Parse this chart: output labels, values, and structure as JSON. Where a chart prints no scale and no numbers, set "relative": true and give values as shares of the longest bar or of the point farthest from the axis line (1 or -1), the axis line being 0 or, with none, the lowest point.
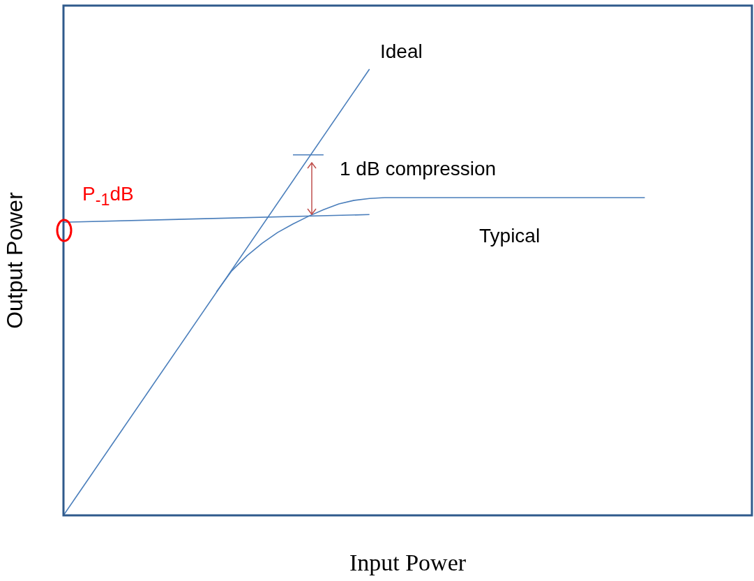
{
  "chart_data": {
    "type": "line",
    "relative": true,
    "xlabel": "Input Power",
    "ylabel": "Output Power",
    "categories": [
      null,
      null,
      null,
      null,
      null,
      null,
      null,
      null,
      null,
      null,
      null,
      null,
      null,
      null,
      null,
      null,
      null,
      null,
      null,
      null,
      null,
      null,
      null,
      null,
      null,
      null,
      null,
      null,
      null,
      null,
      null,
      null,
      null,
      null,
      null,
      null,
      null,
      null,
      null,
      null,
      null,
      null,
      null,
      null,
      null,
      null
    ],
    "series": [
      {
        "color": "#4a7ebb",
        "values": [
          0,
          null,
          null,
          null,
          null,
          null,
          null,
          null,
          null,
          null,
          null,
          null,
          null,
          null,
          null,
          null,
          null,
          null,
          null,
          null,
          1,
          null,
          null,
          null,
          null,
          null,
          null,
          null,
          null,
          null,
          null,
          null,
          null,
          null,
          null,
          null,
          null,
          null,
          null,
          null,
          null,
          null,
          null,
          null,
          null,
          null
        ]
      },
      {
        "color": "#4a7ebb",
        "values": [
          null,
          null,
          null,
          null,
          null,
          null,
          null,
          null,
          null,
          null,
          0.501,
          0.548,
          0.582,
          0.61,
          0.634,
          0.653,
          0.67,
          0.685,
          0.698,
          0.706,
          0.71,
          0.712,
          null,
          null,
          null,
          null,
          null,
          null,
          null,
          null,
          null,
          null,
          null,
          null,
          null,
          null,
          null,
          null,
          0.712,
          null,
          null,
          null,
          null,
          null,
          null,
          null
        ]
      },
      {
        "color": "#4a7ebb",
        "values": [
          0.657,
          null,
          null,
          null,
          null,
          null,
          null,
          null,
          null,
          null,
          null,
          null,
          null,
          null,
          null,
          null,
          null,
          null,
          null,
          null,
          0.674,
          null,
          null,
          null,
          null,
          null,
          null,
          null,
          null,
          null,
          null,
          null,
          null,
          null,
          null,
          null,
          null,
          null,
          null,
          null,
          null,
          null,
          null,
          null,
          null,
          null
        ]
      },
      {
        "color": "#4a7ebb",
        "values": [
          null,
          null,
          null,
          null,
          null,
          null,
          null,
          null,
          null,
          null,
          null,
          null,
          null,
          null,
          null,
          0.808,
          null,
          0.808,
          null,
          null,
          null,
          null,
          null,
          null,
          null,
          null,
          null,
          null,
          null,
          null,
          null,
          null,
          null,
          null,
          null,
          null,
          null,
          null,
          null,
          null,
          null,
          null,
          null,
          null,
          null,
          null
        ]
      }
    ],
    "annotations": [
      "Ideal",
      "1 dB compression",
      "Typical",
      "P$_{-1}$dB"
    ],
    "grid": false,
    "legend": false,
    "marker": "none",
    "line_style": "solid"
  }
}
